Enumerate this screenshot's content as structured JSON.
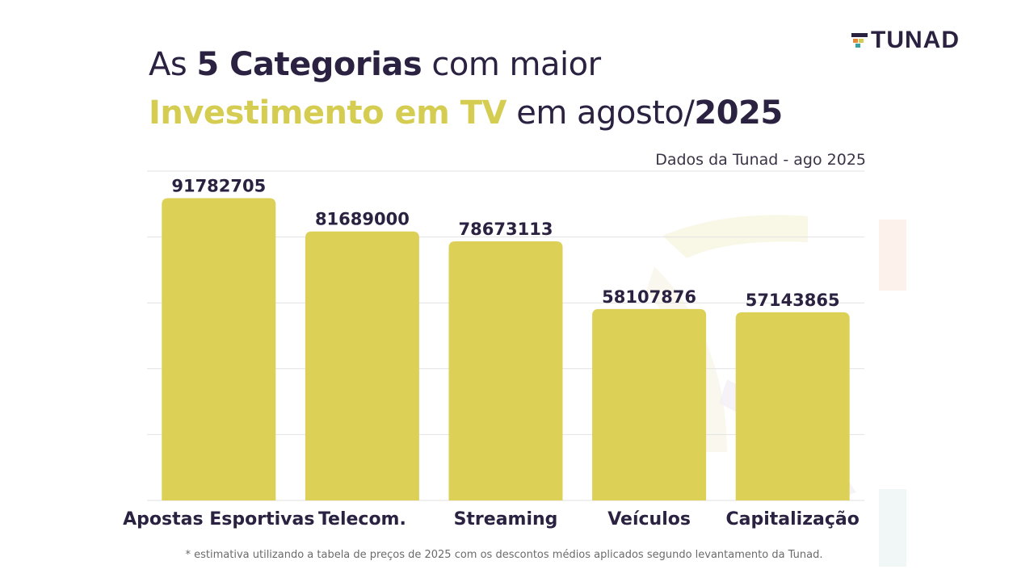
{
  "logo": {
    "text": "TUNAD"
  },
  "title": {
    "part1": "As ",
    "part2": "5 Categorias",
    "part3": " com maior",
    "part4": "Investimento em TV",
    "part5": " em agosto/",
    "part6": "2025"
  },
  "source": "Dados da Tunad - ago 2025",
  "footnote": "* estimativa utilizando a tabela de preços de 2025 com os descontos médios aplicados segundo levantamento da Tunad.",
  "colors": {
    "bar": "#dcd057",
    "title_dark": "#2b2140",
    "title_highlight": "#d4cd52",
    "grid": "#e2e2e2"
  },
  "chart_data": {
    "type": "bar",
    "title": "",
    "xlabel": "",
    "ylabel": "",
    "categories": [
      "Apostas Esportivas",
      "Telecom.",
      "Streaming",
      "Veículos",
      "Capitalização"
    ],
    "values": [
      91782705,
      81689000,
      78673113,
      58107876,
      57143865
    ],
    "labels": [
      "91782705",
      "81689000",
      "78673113",
      "58107876",
      "57143865"
    ],
    "ylim": [
      0,
      100000000
    ],
    "grid": true,
    "legend": "none"
  }
}
